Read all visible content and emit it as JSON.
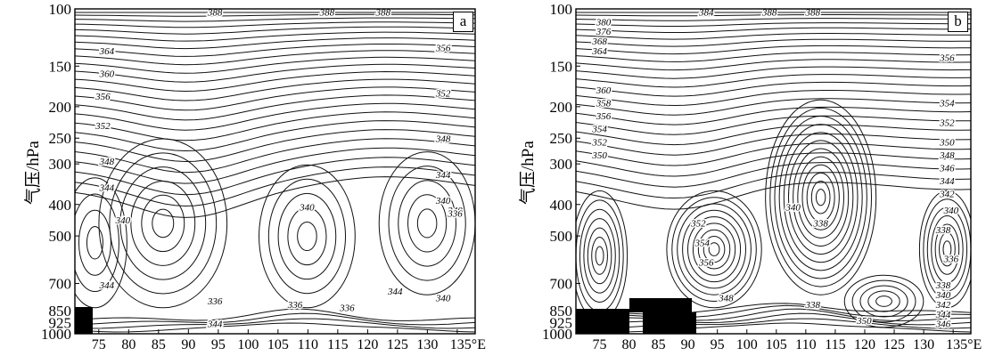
{
  "chart_data": [
    {
      "type": "contour",
      "panel_label": "a",
      "ylabel": "气压/hPa",
      "x_ticks": [
        "75",
        "80",
        "85",
        "90",
        "95",
        "100",
        "105",
        "110",
        "115",
        "120",
        "125",
        "130",
        "135°E"
      ],
      "x_tick_values": [
        75,
        80,
        85,
        90,
        95,
        100,
        105,
        110,
        115,
        120,
        125,
        130,
        135
      ],
      "xlim": [
        71,
        138
      ],
      "y_ticks": [
        "100",
        "150",
        "200",
        "250",
        "300",
        "400",
        "500",
        "700",
        "850",
        "925",
        "1000"
      ],
      "y_tick_values": [
        100,
        150,
        200,
        250,
        300,
        400,
        500,
        700,
        850,
        925,
        1000
      ],
      "y_scale": "log-pressure (inverted)",
      "contour_labels": [
        "388",
        "388",
        "388",
        "364",
        "360",
        "356",
        "352",
        "348",
        "344",
        "340",
        "340",
        "340",
        "344",
        "336",
        "336",
        "336",
        "344",
        "340",
        "356",
        "352",
        "348",
        "344",
        "340",
        "336",
        "344"
      ]
    },
    {
      "type": "contour",
      "panel_label": "b",
      "ylabel": "气压/hPa",
      "x_ticks": [
        "75",
        "80",
        "85",
        "90",
        "95",
        "100",
        "105",
        "110",
        "115",
        "120",
        "125",
        "130",
        "135°E"
      ],
      "x_tick_values": [
        75,
        80,
        85,
        90,
        95,
        100,
        105,
        110,
        115,
        120,
        125,
        130,
        135
      ],
      "xlim": [
        71,
        138
      ],
      "y_ticks": [
        "100",
        "150",
        "200",
        "250",
        "300",
        "400",
        "500",
        "700",
        "850",
        "925",
        "1000"
      ],
      "y_tick_values": [
        100,
        150,
        200,
        250,
        300,
        400,
        500,
        700,
        850,
        925,
        1000
      ],
      "y_scale": "log-pressure (inverted)",
      "contour_labels": [
        "384",
        "388",
        "388",
        "380",
        "376",
        "368",
        "364",
        "360",
        "358",
        "356",
        "354",
        "352",
        "350",
        "340",
        "338",
        "352",
        "354",
        "356",
        "348",
        "338",
        "350",
        "356",
        "354",
        "352",
        "350",
        "348",
        "346",
        "344",
        "342",
        "340",
        "338",
        "336",
        "338",
        "340",
        "342",
        "344",
        "346"
      ]
    }
  ]
}
